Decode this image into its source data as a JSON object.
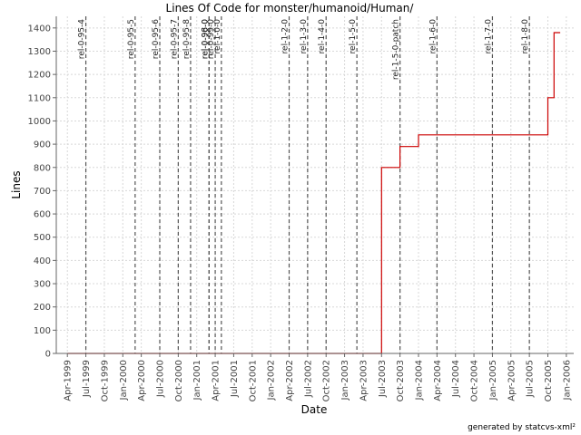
{
  "chart_data": {
    "type": "line",
    "title": "Lines Of Code for monster/humanoid/Human/",
    "xlabel": "Date",
    "ylabel": "Lines",
    "ylim": [
      0,
      1450
    ],
    "y_ticks": [
      0,
      100,
      200,
      300,
      400,
      500,
      600,
      700,
      800,
      900,
      1000,
      1100,
      1200,
      1300,
      1400
    ],
    "x_ticks": [
      "Apr-1999",
      "Jul-1999",
      "Oct-1999",
      "Jan-2000",
      "Apr-2000",
      "Jul-2000",
      "Oct-2000",
      "Jan-2001",
      "Apr-2001",
      "Jul-2001",
      "Oct-2001",
      "Jan-2002",
      "Apr-2002",
      "Jul-2002",
      "Oct-2002",
      "Jan-2003",
      "Apr-2003",
      "Jul-2003",
      "Oct-2003",
      "Jan-2004",
      "Apr-2004",
      "Jul-2004",
      "Oct-2004",
      "Jan-2005",
      "Apr-2005",
      "Jul-2005",
      "Oct-2005",
      "Jan-2006"
    ],
    "grid": true,
    "line_color": "#cc0000",
    "step_points": [
      {
        "x": "Apr-1999",
        "y": 0
      },
      {
        "x": "Jul-2003",
        "y": 0
      },
      {
        "x": "Jul-2003",
        "y": 800
      },
      {
        "x": "Oct-2003",
        "y": 800
      },
      {
        "x": "Oct-2003",
        "y": 890
      },
      {
        "x": "Jan-2004",
        "y": 890
      },
      {
        "x": "Jan-2004",
        "y": 940
      },
      {
        "x": "Oct-2005",
        "y": 940
      },
      {
        "x": "Oct-2005",
        "y": 1100
      },
      {
        "x": "Nov-2005",
        "y": 1100
      },
      {
        "x": "Nov-2005",
        "y": 1380
      },
      {
        "x": "Dec-2005",
        "y": 1380
      }
    ],
    "tags": [
      {
        "name": "rel-0-95-4",
        "x": "Jul-1999"
      },
      {
        "name": "rel-0-95-5",
        "x": "Mar-2000"
      },
      {
        "name": "rel-0-95-6",
        "x": "Jul-2000"
      },
      {
        "name": "rel-0-95-7",
        "x": "Oct-2000"
      },
      {
        "name": "rel-0-95-8",
        "x": "Dec-2000"
      },
      {
        "name": "rel-0-96-0",
        "x": "Mar-2001"
      },
      {
        "name": "rel-0-98-0",
        "x": "Mar-2001"
      },
      {
        "name": "rel-0-99-0",
        "x": "Apr-2001"
      },
      {
        "name": "rel-1-0-0",
        "x": "May-2001"
      },
      {
        "name": "rel-1-2-0",
        "x": "Apr-2002"
      },
      {
        "name": "rel-1-3-0",
        "x": "Jul-2002"
      },
      {
        "name": "rel-1-4-0",
        "x": "Oct-2002"
      },
      {
        "name": "rel-1-5-0",
        "x": "Mar-2003"
      },
      {
        "name": "rel-1-5-0-patch",
        "x": "Oct-2003"
      },
      {
        "name": "rel-1-6-0",
        "x": "Apr-2004"
      },
      {
        "name": "rel-1-7-0",
        "x": "Jan-2005"
      },
      {
        "name": "rel-1-8-0",
        "x": "Jul-2005"
      }
    ]
  },
  "footer": "generated by statcvs-xml²"
}
